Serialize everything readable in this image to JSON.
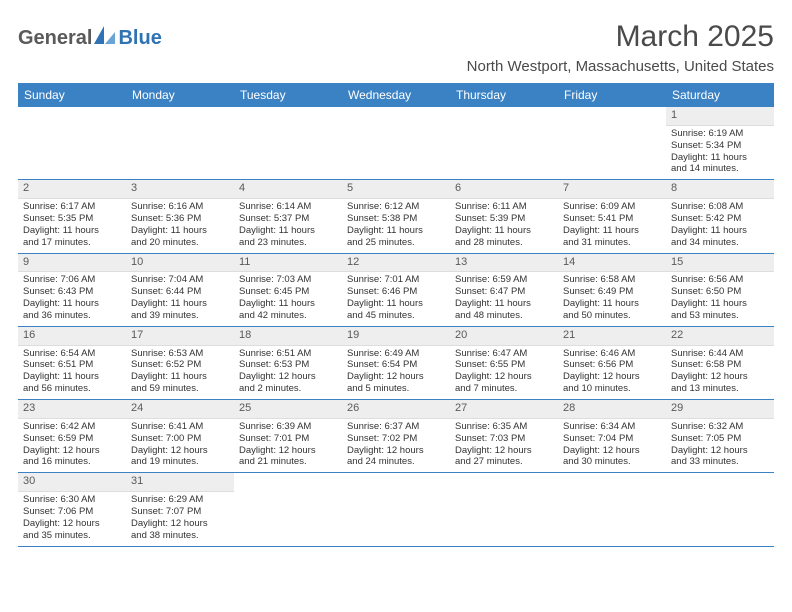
{
  "brand": {
    "part1": "General",
    "part2": "Blue"
  },
  "title": "March 2025",
  "location": "North Westport, Massachusetts, United States",
  "colors": {
    "header_bg": "#3b82c4",
    "header_text": "#ffffff",
    "daynum_bg": "#eeeeee",
    "text": "#333333",
    "title_text": "#4a4a4a",
    "border": "#3b82c4",
    "logo_blue": "#2f73b5",
    "logo_gray": "#5a5a5a"
  },
  "typography": {
    "title_fontsize": 30,
    "location_fontsize": 15,
    "dayheader_fontsize": 12,
    "cell_fontsize": 9.5,
    "logo_fontsize": 20
  },
  "day_names": [
    "Sunday",
    "Monday",
    "Tuesday",
    "Wednesday",
    "Thursday",
    "Friday",
    "Saturday"
  ],
  "weeks": [
    [
      null,
      null,
      null,
      null,
      null,
      null,
      {
        "n": "1",
        "sr": "Sunrise: 6:19 AM",
        "ss": "Sunset: 5:34 PM",
        "d1": "Daylight: 11 hours",
        "d2": "and 14 minutes."
      }
    ],
    [
      {
        "n": "2",
        "sr": "Sunrise: 6:17 AM",
        "ss": "Sunset: 5:35 PM",
        "d1": "Daylight: 11 hours",
        "d2": "and 17 minutes."
      },
      {
        "n": "3",
        "sr": "Sunrise: 6:16 AM",
        "ss": "Sunset: 5:36 PM",
        "d1": "Daylight: 11 hours",
        "d2": "and 20 minutes."
      },
      {
        "n": "4",
        "sr": "Sunrise: 6:14 AM",
        "ss": "Sunset: 5:37 PM",
        "d1": "Daylight: 11 hours",
        "d2": "and 23 minutes."
      },
      {
        "n": "5",
        "sr": "Sunrise: 6:12 AM",
        "ss": "Sunset: 5:38 PM",
        "d1": "Daylight: 11 hours",
        "d2": "and 25 minutes."
      },
      {
        "n": "6",
        "sr": "Sunrise: 6:11 AM",
        "ss": "Sunset: 5:39 PM",
        "d1": "Daylight: 11 hours",
        "d2": "and 28 minutes."
      },
      {
        "n": "7",
        "sr": "Sunrise: 6:09 AM",
        "ss": "Sunset: 5:41 PM",
        "d1": "Daylight: 11 hours",
        "d2": "and 31 minutes."
      },
      {
        "n": "8",
        "sr": "Sunrise: 6:08 AM",
        "ss": "Sunset: 5:42 PM",
        "d1": "Daylight: 11 hours",
        "d2": "and 34 minutes."
      }
    ],
    [
      {
        "n": "9",
        "sr": "Sunrise: 7:06 AM",
        "ss": "Sunset: 6:43 PM",
        "d1": "Daylight: 11 hours",
        "d2": "and 36 minutes."
      },
      {
        "n": "10",
        "sr": "Sunrise: 7:04 AM",
        "ss": "Sunset: 6:44 PM",
        "d1": "Daylight: 11 hours",
        "d2": "and 39 minutes."
      },
      {
        "n": "11",
        "sr": "Sunrise: 7:03 AM",
        "ss": "Sunset: 6:45 PM",
        "d1": "Daylight: 11 hours",
        "d2": "and 42 minutes."
      },
      {
        "n": "12",
        "sr": "Sunrise: 7:01 AM",
        "ss": "Sunset: 6:46 PM",
        "d1": "Daylight: 11 hours",
        "d2": "and 45 minutes."
      },
      {
        "n": "13",
        "sr": "Sunrise: 6:59 AM",
        "ss": "Sunset: 6:47 PM",
        "d1": "Daylight: 11 hours",
        "d2": "and 48 minutes."
      },
      {
        "n": "14",
        "sr": "Sunrise: 6:58 AM",
        "ss": "Sunset: 6:49 PM",
        "d1": "Daylight: 11 hours",
        "d2": "and 50 minutes."
      },
      {
        "n": "15",
        "sr": "Sunrise: 6:56 AM",
        "ss": "Sunset: 6:50 PM",
        "d1": "Daylight: 11 hours",
        "d2": "and 53 minutes."
      }
    ],
    [
      {
        "n": "16",
        "sr": "Sunrise: 6:54 AM",
        "ss": "Sunset: 6:51 PM",
        "d1": "Daylight: 11 hours",
        "d2": "and 56 minutes."
      },
      {
        "n": "17",
        "sr": "Sunrise: 6:53 AM",
        "ss": "Sunset: 6:52 PM",
        "d1": "Daylight: 11 hours",
        "d2": "and 59 minutes."
      },
      {
        "n": "18",
        "sr": "Sunrise: 6:51 AM",
        "ss": "Sunset: 6:53 PM",
        "d1": "Daylight: 12 hours",
        "d2": "and 2 minutes."
      },
      {
        "n": "19",
        "sr": "Sunrise: 6:49 AM",
        "ss": "Sunset: 6:54 PM",
        "d1": "Daylight: 12 hours",
        "d2": "and 5 minutes."
      },
      {
        "n": "20",
        "sr": "Sunrise: 6:47 AM",
        "ss": "Sunset: 6:55 PM",
        "d1": "Daylight: 12 hours",
        "d2": "and 7 minutes."
      },
      {
        "n": "21",
        "sr": "Sunrise: 6:46 AM",
        "ss": "Sunset: 6:56 PM",
        "d1": "Daylight: 12 hours",
        "d2": "and 10 minutes."
      },
      {
        "n": "22",
        "sr": "Sunrise: 6:44 AM",
        "ss": "Sunset: 6:58 PM",
        "d1": "Daylight: 12 hours",
        "d2": "and 13 minutes."
      }
    ],
    [
      {
        "n": "23",
        "sr": "Sunrise: 6:42 AM",
        "ss": "Sunset: 6:59 PM",
        "d1": "Daylight: 12 hours",
        "d2": "and 16 minutes."
      },
      {
        "n": "24",
        "sr": "Sunrise: 6:41 AM",
        "ss": "Sunset: 7:00 PM",
        "d1": "Daylight: 12 hours",
        "d2": "and 19 minutes."
      },
      {
        "n": "25",
        "sr": "Sunrise: 6:39 AM",
        "ss": "Sunset: 7:01 PM",
        "d1": "Daylight: 12 hours",
        "d2": "and 21 minutes."
      },
      {
        "n": "26",
        "sr": "Sunrise: 6:37 AM",
        "ss": "Sunset: 7:02 PM",
        "d1": "Daylight: 12 hours",
        "d2": "and 24 minutes."
      },
      {
        "n": "27",
        "sr": "Sunrise: 6:35 AM",
        "ss": "Sunset: 7:03 PM",
        "d1": "Daylight: 12 hours",
        "d2": "and 27 minutes."
      },
      {
        "n": "28",
        "sr": "Sunrise: 6:34 AM",
        "ss": "Sunset: 7:04 PM",
        "d1": "Daylight: 12 hours",
        "d2": "and 30 minutes."
      },
      {
        "n": "29",
        "sr": "Sunrise: 6:32 AM",
        "ss": "Sunset: 7:05 PM",
        "d1": "Daylight: 12 hours",
        "d2": "and 33 minutes."
      }
    ],
    [
      {
        "n": "30",
        "sr": "Sunrise: 6:30 AM",
        "ss": "Sunset: 7:06 PM",
        "d1": "Daylight: 12 hours",
        "d2": "and 35 minutes."
      },
      {
        "n": "31",
        "sr": "Sunrise: 6:29 AM",
        "ss": "Sunset: 7:07 PM",
        "d1": "Daylight: 12 hours",
        "d2": "and 38 minutes."
      },
      null,
      null,
      null,
      null,
      null
    ]
  ]
}
